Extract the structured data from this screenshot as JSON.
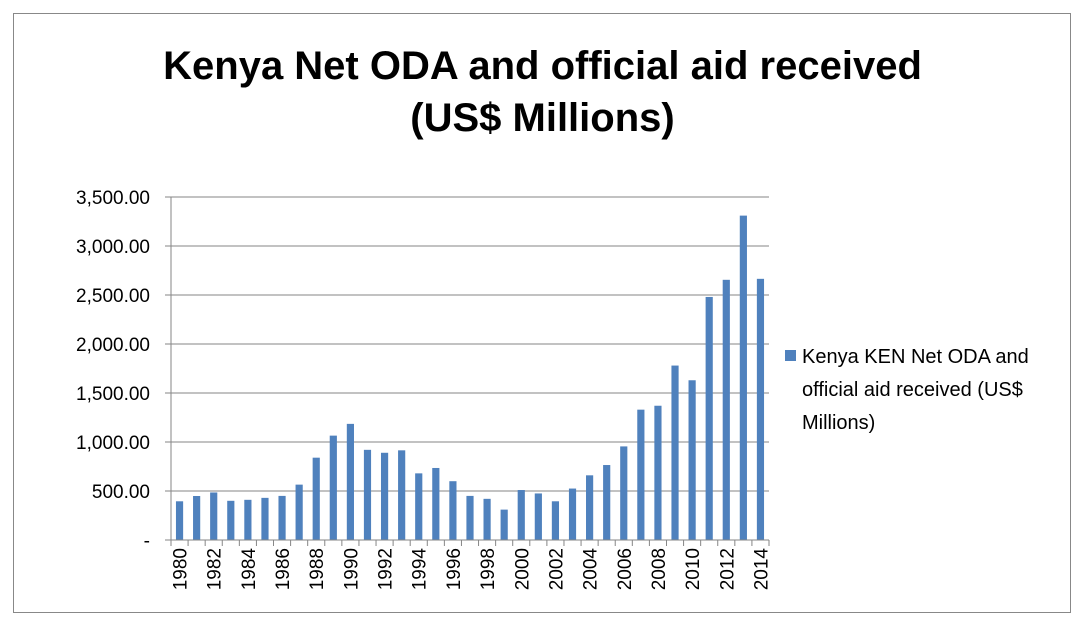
{
  "chart_data": {
    "type": "bar",
    "title": "Kenya Net ODA and official aid received (US$ Millions)",
    "title_lines": [
      "Kenya Net ODA and official aid received",
      "(US$ Millions)"
    ],
    "xlabel": "",
    "ylabel": "",
    "ylim": [
      0,
      3500
    ],
    "yticks": [
      0,
      500,
      1000,
      1500,
      2000,
      2500,
      3000,
      3500
    ],
    "ytick_labels": [
      "-",
      "500.00",
      "1,000.00",
      "1,500.00",
      "2,000.00",
      "2,500.00",
      "3,000.00",
      "3,500.00"
    ],
    "categories": [
      "1980",
      "1981",
      "1982",
      "1983",
      "1984",
      "1985",
      "1986",
      "1987",
      "1988",
      "1989",
      "1990",
      "1991",
      "1992",
      "1993",
      "1994",
      "1995",
      "1996",
      "1997",
      "1998",
      "1999",
      "2000",
      "2001",
      "2002",
      "2003",
      "2004",
      "2005",
      "2006",
      "2007",
      "2008",
      "2009",
      "2010",
      "2011",
      "2012",
      "2013",
      "2014"
    ],
    "xtick_labels_shown": [
      "1980",
      "1982",
      "1984",
      "1986",
      "1988",
      "1990",
      "1992",
      "1994",
      "1996",
      "1998",
      "2000",
      "2002",
      "2004",
      "2006",
      "2008",
      "2010",
      "2012",
      "2014"
    ],
    "grid": true,
    "legend_position": "right",
    "series": [
      {
        "name": "Kenya KEN Net ODA and official aid received (US$ Millions)",
        "legend_lines": [
          "Kenya KEN Net ODA and",
          "official aid received (US$",
          "Millions)"
        ],
        "color": "#4F81BD",
        "values": [
          395,
          449,
          485,
          400,
          410,
          430,
          450,
          565,
          840,
          1065,
          1185,
          920,
          890,
          915,
          680,
          735,
          600,
          450,
          420,
          310,
          510,
          475,
          395,
          525,
          660,
          765,
          955,
          1330,
          1370,
          1780,
          1630,
          2480,
          2655,
          3310,
          2665
        ]
      }
    ]
  }
}
